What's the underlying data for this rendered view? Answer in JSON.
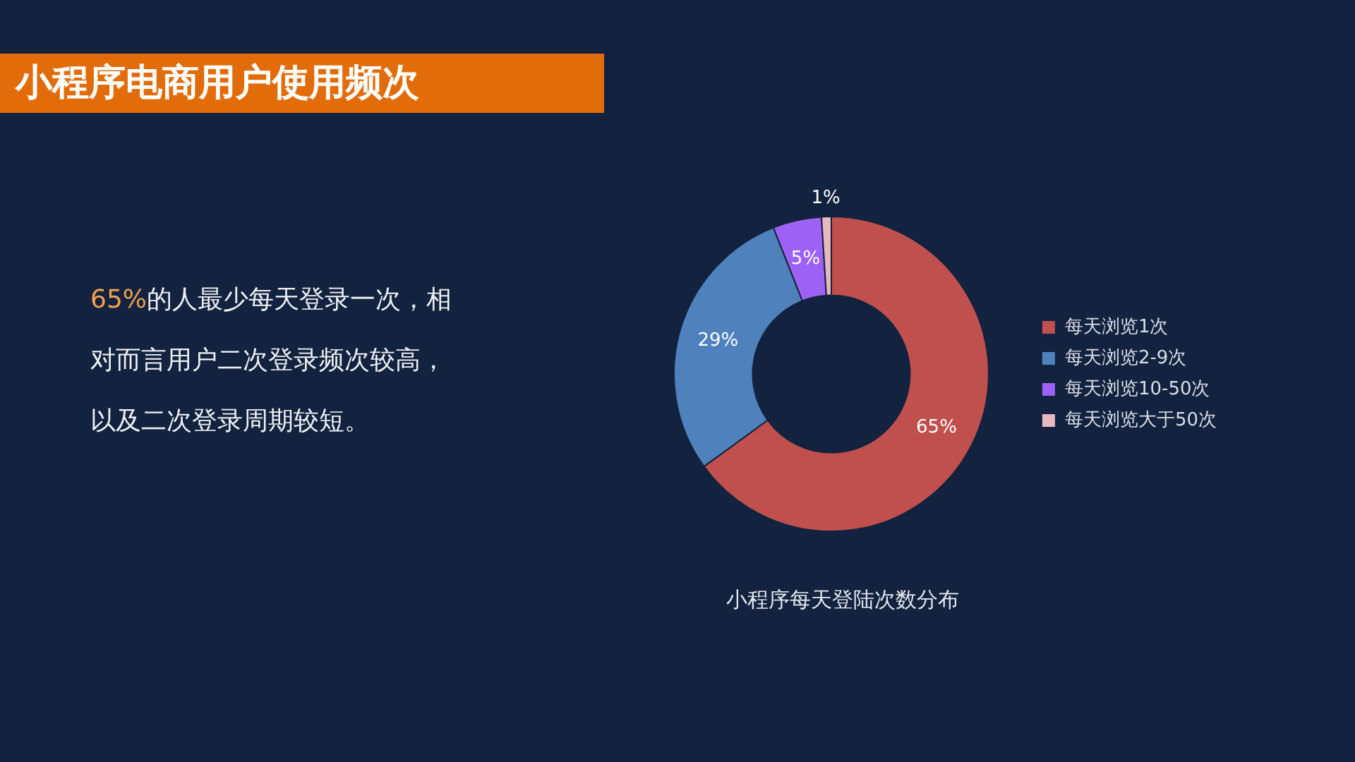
{
  "chart_data": {
    "type": "donut",
    "title": "小程序电商用户使用频次",
    "subtitle": "小程序每天登陆次数分布",
    "categories": [
      "每天浏览1次",
      "每天浏览2-9次",
      "每天浏览10-50次",
      "每天浏览大于50次"
    ],
    "values": [
      65,
      29,
      5,
      1
    ],
    "colors": [
      "#c0504d",
      "#4f81bd",
      "#9d62f5",
      "#e6b9c0"
    ],
    "value_labels": [
      "65%",
      "29%",
      "5%",
      "1%"
    ],
    "legend": "right",
    "annotations": [
      "65%的人最少每天登录一次，相对而言用户二次登录频次较高，以及二次登录周期较短。"
    ]
  }
}
